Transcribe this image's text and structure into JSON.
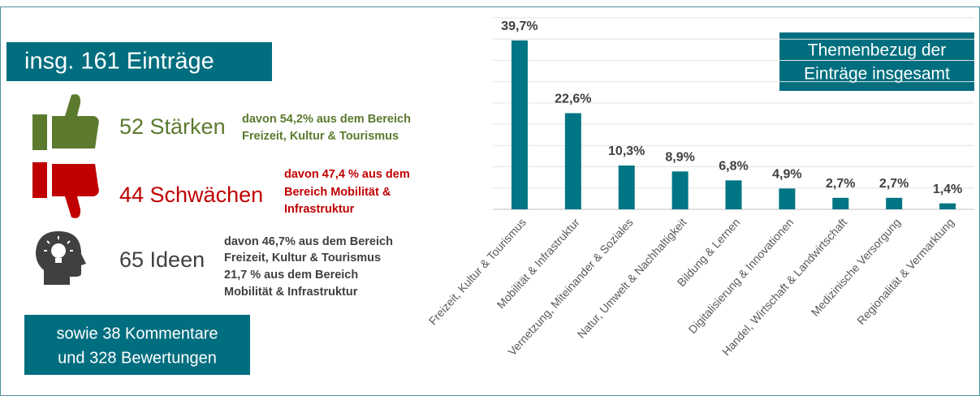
{
  "summary": {
    "title": "insg. 161 Einträge",
    "items": [
      {
        "count": "52 Stärken",
        "color": "#5b7a2e",
        "detail": [
          "davon 54,2% aus dem Bereich",
          "Freizeit, Kultur & Tourismus"
        ]
      },
      {
        "count": "44 Schwächen",
        "color": "#c00000",
        "detail": [
          "davon 47,4 % aus dem",
          "Bereich Mobilität &",
          "Infrastruktur"
        ]
      },
      {
        "count": "65 Ideen",
        "color": "#404040",
        "detail": [
          "davon 46,7% aus dem Bereich",
          "Freizeit, Kultur & Tourismus",
          "21,7 % aus dem Bereich",
          "Mobilität & Infrastruktur"
        ]
      }
    ],
    "footer": [
      "sowie 38 Kommentare",
      "und 328 Bewertungen"
    ]
  },
  "chart_data": {
    "type": "bar",
    "title": [
      "Themenbezug der",
      "Einträge insgesamt"
    ],
    "categories": [
      "Freizeit, Kultur & Tourismus",
      "Mobilität & Infrastruktur",
      "Vernetzung, Miteinander & Soziales",
      "Natur, Umwelt & Nachhaltigkeit",
      "Bildung & Lernen",
      "Digitalisierung & Innovationen",
      "Handel, Wirtschaft & Landwirtschaft",
      "Medizinische Versorgung",
      "Regionalität & Vermarktung"
    ],
    "values": [
      39.7,
      22.6,
      10.3,
      8.9,
      6.8,
      4.9,
      2.7,
      2.7,
      1.4
    ],
    "value_labels": [
      "39,7%",
      "22,6%",
      "10,3%",
      "8,9%",
      "6,8%",
      "4,9%",
      "2,7%",
      "2,7%",
      "1,4%"
    ],
    "color": "#007584",
    "ylim": [
      0,
      45
    ],
    "yticks": [
      0,
      5,
      10,
      15,
      20,
      25,
      30,
      35,
      40,
      45
    ],
    "grid": true
  }
}
